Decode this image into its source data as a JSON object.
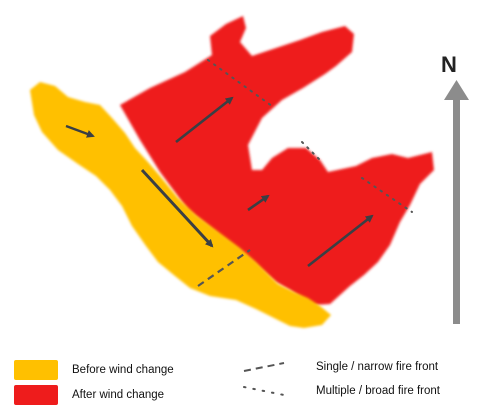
{
  "compass": {
    "label": "N"
  },
  "colors": {
    "before": "#FFC000",
    "after": "#EE1C1C",
    "arrow": "#3A3F44",
    "compass_arrow": "#8C8C8C"
  },
  "legend": {
    "before_label": "Before wind change",
    "after_label": "After wind change",
    "single_label": "Single / narrow fire front",
    "multiple_label": "Multiple / broad fire front"
  },
  "icons": {
    "compass": "north-arrow-icon",
    "wind": "wind-direction-arrow-icon"
  }
}
